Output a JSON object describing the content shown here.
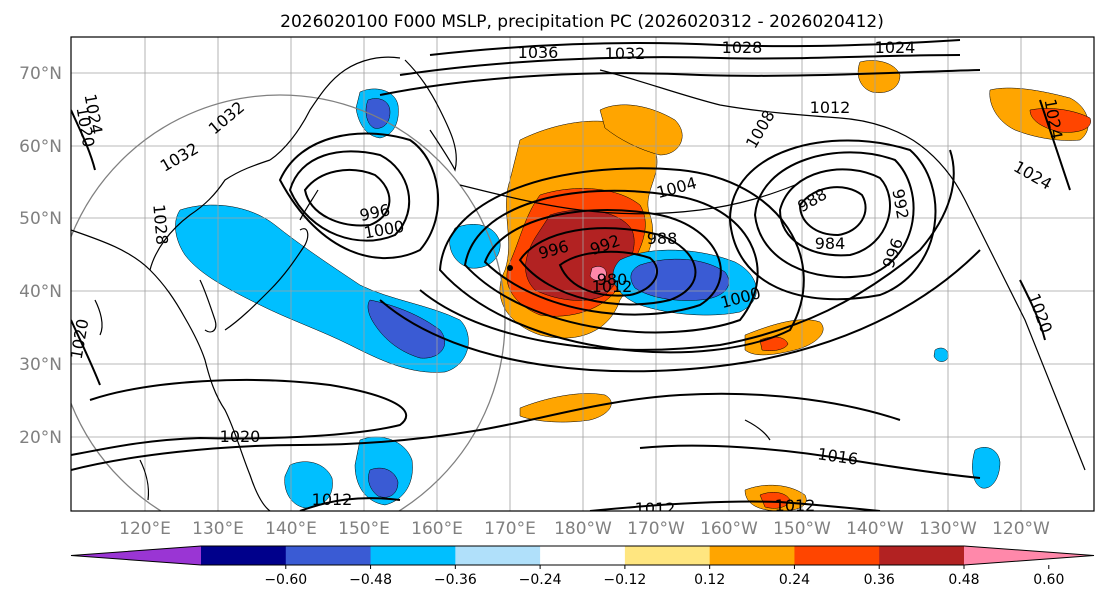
{
  "title": "2026020100 F000 MSLP, precipitation PC (2026020312 - 2026020412)",
  "map": {
    "lat_labels": [
      "70°N",
      "60°N",
      "50°N",
      "40°N",
      "30°N",
      "20°N"
    ],
    "lon_labels": [
      "120°E",
      "130°E",
      "140°E",
      "150°E",
      "160°E",
      "170°E",
      "180°W",
      "170°W",
      "160°W",
      "150°W",
      "140°W",
      "130°W",
      "120°W"
    ],
    "isobar_labels": [
      "1036",
      "1032",
      "1028",
      "1024",
      "1024",
      "1020",
      "1020",
      "1012",
      "1012",
      "1008",
      "1004",
      "1000",
      "1000",
      "996",
      "996",
      "996",
      "992",
      "992",
      "988",
      "988",
      "984",
      "980",
      "1032",
      "1028",
      "1032",
      "1024",
      "1024",
      "1020",
      "1020",
      "1016",
      "1012",
      "1012",
      "1012"
    ]
  },
  "colorbar": {
    "colors": [
      "#9a35d4",
      "#00008b",
      "#3a5bd4",
      "#00bfff",
      "#b0e0fa",
      "#ffffff",
      "#ffe680",
      "#ffa500",
      "#ff4500",
      "#b22222",
      "#ff88aa"
    ],
    "tick_labels": [
      "−0.60",
      "−0.48",
      "−0.36",
      "−0.24",
      "−0.12",
      "0.12",
      "0.24",
      "0.36",
      "0.48",
      "0.60"
    ]
  },
  "chart_data": {
    "type": "heatmap",
    "title": "2026020100 F000 MSLP, precipitation PC (2026020312 - 2026020412)",
    "variables": [
      "MSLP",
      "precipitation PC"
    ],
    "levels": [
      -0.6,
      -0.48,
      -0.36,
      -0.24,
      -0.12,
      0.12,
      0.24,
      0.36,
      0.48,
      0.6
    ],
    "extend": "both",
    "lat_range": [
      "10°N",
      "75°N"
    ],
    "lon_range": [
      "110°E",
      "112°W"
    ],
    "grid": true,
    "pressure_centers": [
      {
        "kind": "low",
        "value": 984,
        "lat": 47,
        "lon": "149°W"
      },
      {
        "kind": "low",
        "value": 980,
        "lat": 41,
        "lon": "177°W"
      },
      {
        "kind": "low",
        "value": 996,
        "lat": 52,
        "lon": "155°E"
      },
      {
        "kind": "high",
        "value": 1036,
        "lat": 73,
        "lon": "180°"
      }
    ]
  }
}
